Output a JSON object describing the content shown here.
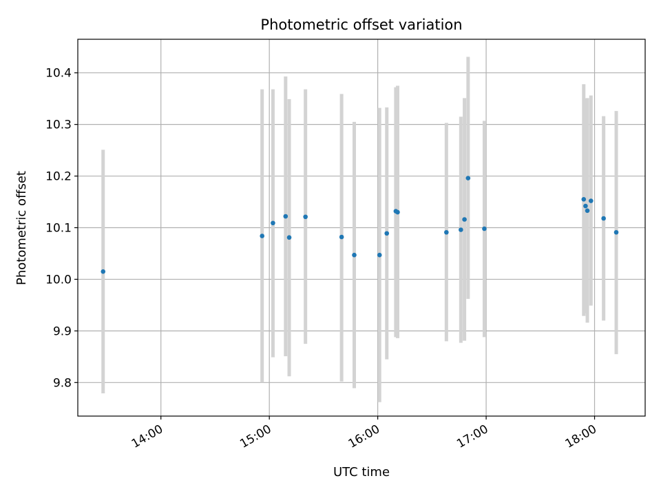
{
  "chart_data": {
    "type": "scatter",
    "title": "Photometric offset variation",
    "xlabel": "UTC time",
    "ylabel": "Photometric offset",
    "x_ticks": [
      "14:00",
      "15:00",
      "16:00",
      "17:00",
      "18:00"
    ],
    "y_ticks": [
      "9.8",
      "9.9",
      "10.0",
      "10.1",
      "10.2",
      "10.3",
      "10.4"
    ],
    "x_range": [
      "13:14",
      "18:28"
    ],
    "ylim": [
      9.735,
      10.465
    ],
    "grid": true,
    "colors": {
      "point": "#1f77b4",
      "errorbar": "#d3d3d3",
      "grid": "#b0b0b0"
    },
    "series": [
      {
        "points": [
          {
            "x": "13:28",
            "y": 10.015,
            "ylow": 9.779,
            "yhigh": 10.251
          },
          {
            "x": "14:56",
            "y": 10.084,
            "ylow": 9.8,
            "yhigh": 10.368
          },
          {
            "x": "15:02",
            "y": 10.109,
            "ylow": 9.849,
            "yhigh": 10.368
          },
          {
            "x": "15:09",
            "y": 10.122,
            "ylow": 9.851,
            "yhigh": 10.393
          },
          {
            "x": "15:11",
            "y": 10.081,
            "ylow": 9.812,
            "yhigh": 10.349
          },
          {
            "x": "15:20",
            "y": 10.121,
            "ylow": 9.875,
            "yhigh": 10.368
          },
          {
            "x": "15:40",
            "y": 10.082,
            "ylow": 9.802,
            "yhigh": 10.359
          },
          {
            "x": "15:47",
            "y": 10.047,
            "ylow": 9.789,
            "yhigh": 10.305
          },
          {
            "x": "16:01",
            "y": 10.047,
            "ylow": 9.762,
            "yhigh": 10.332
          },
          {
            "x": "16:05",
            "y": 10.089,
            "ylow": 9.845,
            "yhigh": 10.333
          },
          {
            "x": "16:10",
            "y": 10.132,
            "ylow": 9.888,
            "yhigh": 10.372
          },
          {
            "x": "16:11",
            "y": 10.13,
            "ylow": 9.886,
            "yhigh": 10.375
          },
          {
            "x": "16:38",
            "y": 10.091,
            "ylow": 9.88,
            "yhigh": 10.303
          },
          {
            "x": "16:46",
            "y": 10.096,
            "ylow": 9.877,
            "yhigh": 10.315
          },
          {
            "x": "16:48",
            "y": 10.116,
            "ylow": 9.881,
            "yhigh": 10.351
          },
          {
            "x": "16:50",
            "y": 10.196,
            "ylow": 9.962,
            "yhigh": 10.431
          },
          {
            "x": "16:59",
            "y": 10.098,
            "ylow": 9.888,
            "yhigh": 10.307
          },
          {
            "x": "17:54",
            "y": 10.155,
            "ylow": 9.929,
            "yhigh": 10.378
          },
          {
            "x": "17:55",
            "y": 10.142,
            "ylow": 9.934,
            "yhigh": 10.35
          },
          {
            "x": "17:56",
            "y": 10.133,
            "ylow": 9.916,
            "yhigh": 10.351
          },
          {
            "x": "17:58",
            "y": 10.152,
            "ylow": 9.949,
            "yhigh": 10.356
          },
          {
            "x": "18:05",
            "y": 10.118,
            "ylow": 9.92,
            "yhigh": 10.316
          },
          {
            "x": "18:12",
            "y": 10.091,
            "ylow": 9.855,
            "yhigh": 10.326
          }
        ]
      }
    ]
  }
}
